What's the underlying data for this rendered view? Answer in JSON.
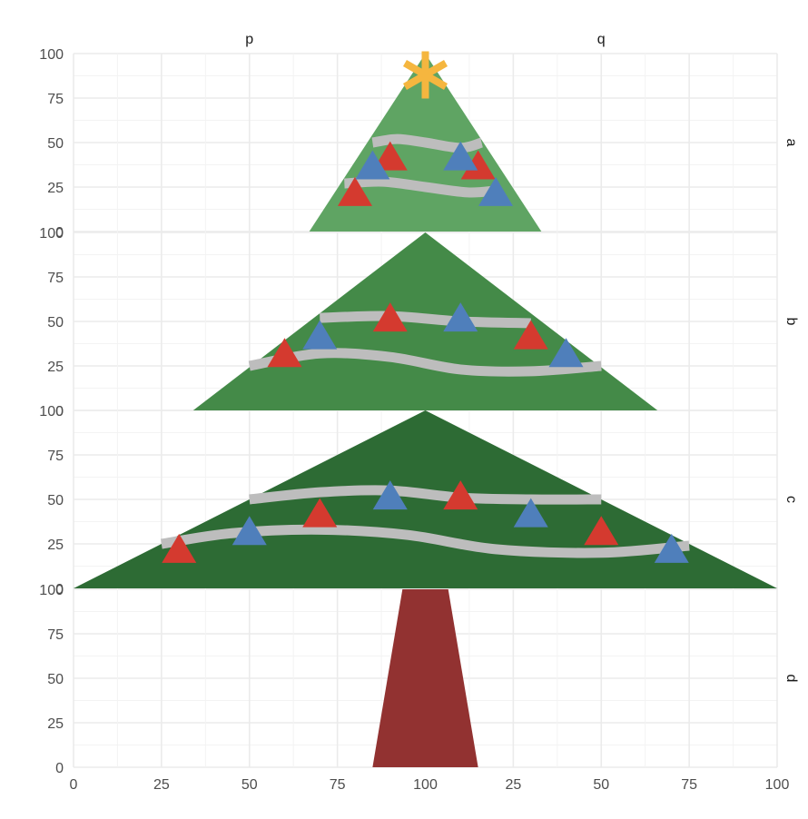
{
  "chart_data": {
    "type": "faceted-area",
    "facet_cols": [
      "p",
      "q"
    ],
    "facet_rows": [
      "a",
      "b",
      "c",
      "d"
    ],
    "x_ticks": [
      "0",
      "25",
      "50",
      "75",
      "100",
      "25",
      "50",
      "75",
      "100"
    ],
    "y_ticks": [
      "0",
      "25",
      "50",
      "75",
      "100"
    ],
    "x_range": [
      0,
      200
    ],
    "y_range": [
      0,
      100
    ],
    "grid": true,
    "colors": {
      "a": "#5fa463",
      "b": "#448a48",
      "c": "#2d6b34",
      "d": "#923231",
      "star": "#f5b63f",
      "garland": "#bdbdbd",
      "red_ornament": "#d43a2f",
      "blue_ornament": "#4f7fbb",
      "grid_major": "#ebebeb",
      "grid_minor": "#f3f3f3"
    },
    "panels": [
      {
        "row": "a",
        "color": "#5fa463",
        "tree": [
          [
            67,
            0
          ],
          [
            100,
            100
          ],
          [
            133,
            0
          ]
        ],
        "garlands": [
          [
            [
              85,
              50
            ],
            [
              92,
              52
            ],
            [
              100,
              50
            ],
            [
              110,
              47
            ],
            [
              116,
              50
            ]
          ],
          [
            [
              77,
              27
            ],
            [
              88,
              28
            ],
            [
              100,
              25
            ],
            [
              112,
              22
            ],
            [
              120,
              23
            ]
          ]
        ],
        "ornaments_red": [
          [
            80,
            22
          ],
          [
            90,
            42
          ],
          [
            115,
            37
          ]
        ],
        "ornaments_blue": [
          [
            85,
            37
          ],
          [
            110,
            42
          ],
          [
            120,
            22
          ]
        ],
        "star": [
          100,
          88
        ]
      },
      {
        "row": "b",
        "color": "#448a48",
        "tree": [
          [
            34,
            0
          ],
          [
            100,
            100
          ],
          [
            166,
            0
          ]
        ],
        "garlands": [
          [
            [
              70,
              52
            ],
            [
              90,
              53
            ],
            [
              110,
              50
            ],
            [
              130,
              49
            ]
          ],
          [
            [
              50,
              25
            ],
            [
              70,
              32
            ],
            [
              90,
              30
            ],
            [
              110,
              23
            ],
            [
              130,
              22
            ],
            [
              150,
              25
            ]
          ]
        ],
        "ornaments_red": [
          [
            60,
            32
          ],
          [
            90,
            52
          ],
          [
            130,
            42
          ]
        ],
        "ornaments_blue": [
          [
            70,
            42
          ],
          [
            110,
            52
          ],
          [
            140,
            32
          ]
        ]
      },
      {
        "row": "c",
        "color": "#2d6b34",
        "tree": [
          [
            0,
            0
          ],
          [
            100,
            100
          ],
          [
            200,
            0
          ]
        ],
        "garlands": [
          [
            [
              50,
              50
            ],
            [
              70,
              54
            ],
            [
              90,
              55
            ],
            [
              110,
              51
            ],
            [
              130,
              50
            ],
            [
              150,
              50
            ]
          ],
          [
            [
              25,
              25
            ],
            [
              45,
              31
            ],
            [
              70,
              33
            ],
            [
              95,
              30
            ],
            [
              120,
              22
            ],
            [
              150,
              20
            ],
            [
              175,
              24
            ]
          ]
        ],
        "ornaments_red": [
          [
            30,
            22
          ],
          [
            70,
            42
          ],
          [
            110,
            52
          ],
          [
            150,
            32
          ]
        ],
        "ornaments_blue": [
          [
            50,
            32
          ],
          [
            90,
            52
          ],
          [
            130,
            42
          ],
          [
            170,
            22
          ]
        ]
      },
      {
        "row": "d",
        "color": "#923231",
        "tree": [
          [
            85,
            0
          ],
          [
            115,
            0
          ],
          [
            106.5,
            100
          ],
          [
            93.5,
            100
          ]
        ],
        "garlands": [],
        "ornaments_red": [],
        "ornaments_blue": []
      }
    ]
  }
}
